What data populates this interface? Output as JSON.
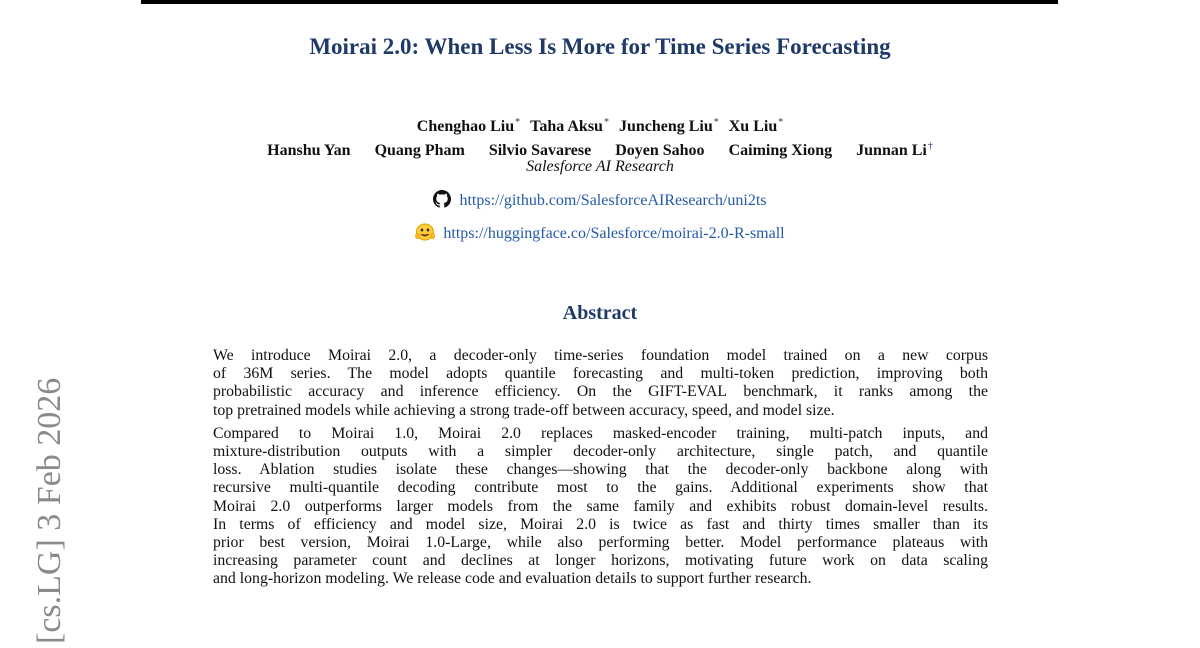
{
  "paper": {
    "title": "Moirai 2.0: When Less Is More for Time Series Forecasting",
    "authors_row1": [
      {
        "name": "Chenghao Liu",
        "mark": "*"
      },
      {
        "name": "Taha Aksu",
        "mark": "*"
      },
      {
        "name": "Juncheng Liu",
        "mark": "*"
      },
      {
        "name": "Xu Liu",
        "mark": "*"
      }
    ],
    "authors_row2": [
      {
        "name": "Hanshu Yan",
        "mark": ""
      },
      {
        "name": "Quang Pham",
        "mark": ""
      },
      {
        "name": "Silvio Savarese",
        "mark": ""
      },
      {
        "name": "Doyen Sahoo",
        "mark": ""
      },
      {
        "name": "Caiming Xiong",
        "mark": ""
      },
      {
        "name": "Junnan Li",
        "mark": "†"
      }
    ],
    "affiliation": "Salesforce AI Research",
    "links": {
      "github": {
        "icon": "github-icon",
        "url": "https://github.com/SalesforceAIResearch/uni2ts"
      },
      "huggingface": {
        "icon": "huggingface-icon",
        "url": "https://huggingface.co/Salesforce/moirai-2.0-R-small"
      }
    },
    "abstract_heading": "Abstract",
    "abstract_p1": [
      "We introduce Moirai 2.0, a decoder-only time-series foundation model trained on a new corpus",
      "of 36M series. The model adopts quantile forecasting and multi-token prediction, improving both",
      "probabilistic accuracy and inference efficiency. On the ",
      "GIFT-EVAL",
      " benchmark, it ranks among the",
      "top pretrained models while achieving a strong trade-off between accuracy, speed, and model size."
    ],
    "abstract_p2": [
      "Compared to Moirai 1.0, Moirai 2.0 replaces masked-encoder training, multi-patch inputs, and",
      "mixture-distribution outputs with a simpler decoder-only architecture, single patch, and quantile",
      "loss. Ablation studies isolate these changes—showing that the decoder-only backbone along with",
      "recursive multi-quantile decoding contribute most to the gains. Additional experiments show that",
      "Moirai 2.0 outperforms larger models from the same family and exhibits robust domain-level results.",
      "In terms of efficiency and model size, Moirai 2.0 is twice as fast and thirty times smaller than its",
      "prior best version, Moirai 1.0-Large, while also performing better. Model performance plateaus with",
      "increasing parameter count and declines at longer horizons, motivating future work on data scaling",
      "and long-horizon modeling. We release code and evaluation details to support further research."
    ]
  },
  "arxiv_stamp": "[cs.LG]  3 Feb 2026",
  "colors": {
    "title": "#1f3a68",
    "link": "#2559a8",
    "stamp": "#8a8a8a"
  }
}
